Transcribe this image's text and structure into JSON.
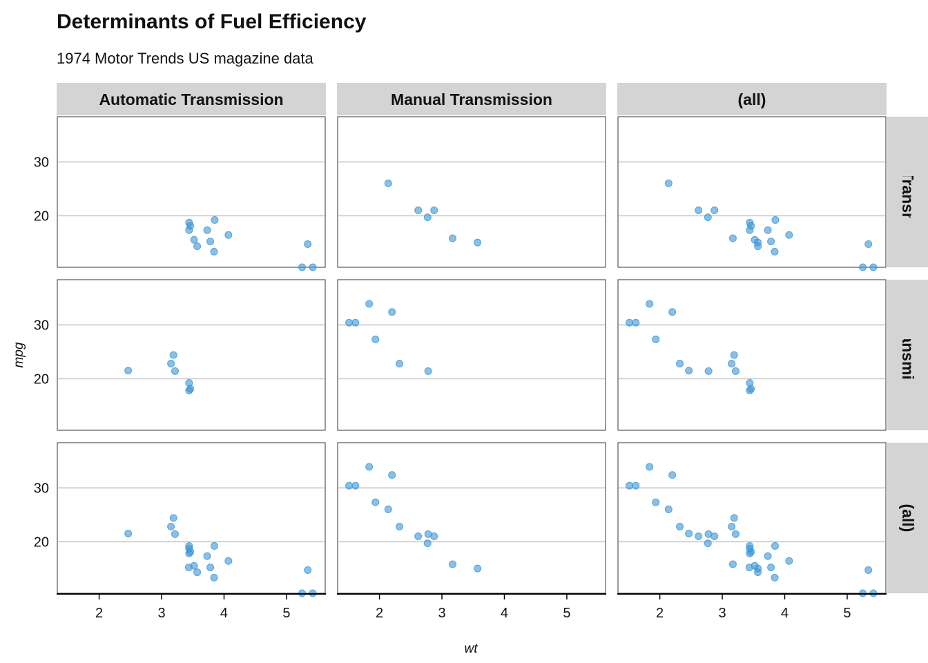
{
  "chart_data": {
    "type": "scatter",
    "title": "Determinants of Fuel Efficiency",
    "subtitle": "1974 Motor Trends US magazine data",
    "xlabel": "wt",
    "ylabel": "mpg",
    "xlim": [
      1.33,
      5.62
    ],
    "ylim": [
      10.4,
      38.4
    ],
    "x_ticks": [
      2,
      3,
      4,
      5
    ],
    "y_ticks": [
      20,
      30
    ],
    "grid": "horizontal",
    "point_color": "#3c95d6",
    "strip_color": "#d4d4d4",
    "col_facets": [
      "Automatic Transmission",
      "Manual Transmission",
      "(all)"
    ],
    "row_facets": [
      "Normal Transmission",
      "V/S Transmission",
      "(all)"
    ],
    "panels": [
      {
        "row": 0,
        "col": 0,
        "points": [
          [
            3.44,
            18.7
          ],
          [
            3.46,
            18.1
          ],
          [
            3.57,
            14.3
          ],
          [
            3.44,
            17.3
          ],
          [
            3.52,
            15.5
          ],
          [
            3.84,
            13.3
          ],
          [
            3.85,
            19.2
          ],
          [
            4.07,
            16.4
          ],
          [
            3.73,
            17.3
          ],
          [
            3.78,
            15.2
          ],
          [
            5.25,
            10.4
          ],
          [
            5.42,
            10.4
          ],
          [
            5.34,
            14.7
          ]
        ]
      },
      {
        "row": 0,
        "col": 1,
        "points": [
          [
            2.62,
            21.0
          ],
          [
            2.875,
            21.0
          ],
          [
            2.14,
            26.0
          ],
          [
            3.17,
            15.8
          ],
          [
            2.77,
            19.7
          ],
          [
            3.57,
            15.0
          ]
        ]
      },
      {
        "row": 0,
        "col": 2,
        "points": [
          [
            3.44,
            18.7
          ],
          [
            3.46,
            18.1
          ],
          [
            3.57,
            14.3
          ],
          [
            3.44,
            17.3
          ],
          [
            3.52,
            15.5
          ],
          [
            3.84,
            13.3
          ],
          [
            3.85,
            19.2
          ],
          [
            4.07,
            16.4
          ],
          [
            3.73,
            17.3
          ],
          [
            3.78,
            15.2
          ],
          [
            5.25,
            10.4
          ],
          [
            5.42,
            10.4
          ],
          [
            5.34,
            14.7
          ],
          [
            2.62,
            21.0
          ],
          [
            2.875,
            21.0
          ],
          [
            2.14,
            26.0
          ],
          [
            3.17,
            15.8
          ],
          [
            2.77,
            19.7
          ],
          [
            3.57,
            15.0
          ]
        ]
      },
      {
        "row": 1,
        "col": 0,
        "points": [
          [
            3.215,
            21.4
          ],
          [
            3.46,
            18.1
          ],
          [
            3.19,
            24.4
          ],
          [
            3.15,
            22.8
          ],
          [
            3.44,
            19.2
          ],
          [
            3.44,
            17.8
          ],
          [
            2.465,
            21.5
          ]
        ]
      },
      {
        "row": 1,
        "col": 1,
        "points": [
          [
            2.32,
            22.8
          ],
          [
            2.2,
            32.4
          ],
          [
            1.615,
            30.4
          ],
          [
            1.835,
            33.9
          ],
          [
            1.935,
            27.3
          ],
          [
            1.513,
            30.4
          ],
          [
            2.78,
            21.4
          ]
        ]
      },
      {
        "row": 1,
        "col": 2,
        "points": [
          [
            3.215,
            21.4
          ],
          [
            3.46,
            18.1
          ],
          [
            3.19,
            24.4
          ],
          [
            3.15,
            22.8
          ],
          [
            3.44,
            19.2
          ],
          [
            3.44,
            17.8
          ],
          [
            2.465,
            21.5
          ],
          [
            2.32,
            22.8
          ],
          [
            2.2,
            32.4
          ],
          [
            1.615,
            30.4
          ],
          [
            1.835,
            33.9
          ],
          [
            1.935,
            27.3
          ],
          [
            1.513,
            30.4
          ],
          [
            2.78,
            21.4
          ]
        ]
      },
      {
        "row": 2,
        "col": 0,
        "points": [
          [
            3.215,
            21.4
          ],
          [
            3.44,
            18.7
          ],
          [
            3.46,
            18.1
          ],
          [
            3.57,
            14.3
          ],
          [
            3.19,
            24.4
          ],
          [
            3.15,
            22.8
          ],
          [
            3.44,
            19.2
          ],
          [
            3.44,
            17.8
          ],
          [
            4.07,
            16.4
          ],
          [
            3.73,
            17.3
          ],
          [
            3.78,
            15.2
          ],
          [
            5.25,
            10.4
          ],
          [
            5.42,
            10.4
          ],
          [
            5.34,
            14.7
          ],
          [
            2.465,
            21.5
          ],
          [
            3.52,
            15.5
          ],
          [
            3.435,
            15.2
          ],
          [
            3.84,
            13.3
          ],
          [
            3.845,
            19.2
          ]
        ]
      },
      {
        "row": 2,
        "col": 1,
        "points": [
          [
            2.62,
            21.0
          ],
          [
            2.875,
            21.0
          ],
          [
            2.32,
            22.8
          ],
          [
            2.2,
            32.4
          ],
          [
            1.615,
            30.4
          ],
          [
            1.835,
            33.9
          ],
          [
            1.935,
            27.3
          ],
          [
            2.14,
            26.0
          ],
          [
            1.513,
            30.4
          ],
          [
            3.17,
            15.8
          ],
          [
            2.77,
            19.7
          ],
          [
            3.57,
            15.0
          ],
          [
            2.78,
            21.4
          ]
        ]
      },
      {
        "row": 2,
        "col": 2,
        "points": [
          [
            2.62,
            21.0
          ],
          [
            2.875,
            21.0
          ],
          [
            2.32,
            22.8
          ],
          [
            3.215,
            21.4
          ],
          [
            3.44,
            18.7
          ],
          [
            3.46,
            18.1
          ],
          [
            3.57,
            14.3
          ],
          [
            3.19,
            24.4
          ],
          [
            3.15,
            22.8
          ],
          [
            3.44,
            19.2
          ],
          [
            3.44,
            17.8
          ],
          [
            4.07,
            16.4
          ],
          [
            3.73,
            17.3
          ],
          [
            3.78,
            15.2
          ],
          [
            5.25,
            10.4
          ],
          [
            5.42,
            10.4
          ],
          [
            5.34,
            14.7
          ],
          [
            2.2,
            32.4
          ],
          [
            1.615,
            30.4
          ],
          [
            1.835,
            33.9
          ],
          [
            2.465,
            21.5
          ],
          [
            3.52,
            15.5
          ],
          [
            3.435,
            15.2
          ],
          [
            3.84,
            13.3
          ],
          [
            3.845,
            19.2
          ],
          [
            1.935,
            27.3
          ],
          [
            2.14,
            26.0
          ],
          [
            1.513,
            30.4
          ],
          [
            3.17,
            15.8
          ],
          [
            2.77,
            19.7
          ],
          [
            3.57,
            15.0
          ],
          [
            2.78,
            21.4
          ]
        ]
      }
    ]
  }
}
